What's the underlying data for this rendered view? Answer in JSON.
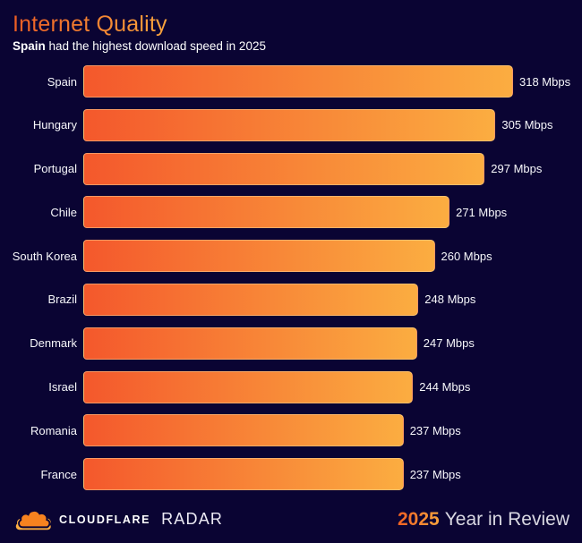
{
  "header": {
    "title": "Internet Quality",
    "subtitle_bold": "Spain",
    "subtitle_rest": " had the highest download speed in 2025"
  },
  "chart_data": {
    "type": "bar",
    "orientation": "horizontal",
    "title": "Internet Quality",
    "subtitle": "Spain had the highest download speed in 2025",
    "categories": [
      "Spain",
      "Hungary",
      "Portugal",
      "Chile",
      "South Korea",
      "Brazil",
      "Denmark",
      "Israel",
      "Romania",
      "France"
    ],
    "values": [
      318,
      305,
      297,
      271,
      260,
      248,
      247,
      244,
      237,
      237
    ],
    "unit": "Mbps",
    "xlim": [
      0,
      318
    ],
    "grid": false,
    "legend": false,
    "bar_gradient": [
      "#f4582c",
      "#fbad41"
    ]
  },
  "footer": {
    "brand": "CLOUDFLARE",
    "product": "RADAR",
    "year": "2025",
    "campaign": "Year in Review"
  },
  "colors": {
    "background": "#0a0433",
    "accent_orange": "#f6821f",
    "accent_amber": "#fbad41",
    "bar_gradient_start": "#f4582c",
    "bar_gradient_end": "#fbad41",
    "text": "#ffffff"
  }
}
